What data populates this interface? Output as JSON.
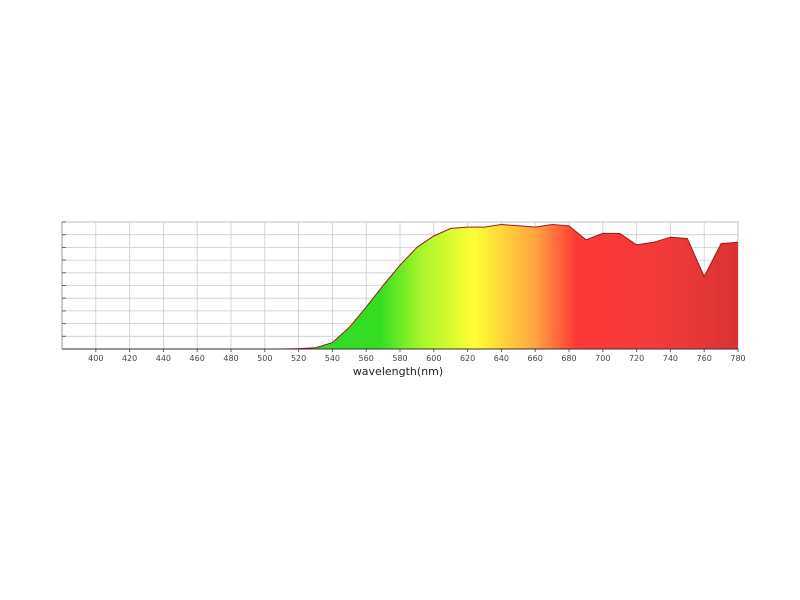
{
  "chart_data": {
    "type": "area",
    "x_label": "wavelength(nm)",
    "x": [
      380,
      390,
      400,
      410,
      420,
      430,
      440,
      450,
      460,
      470,
      480,
      490,
      500,
      510,
      520,
      530,
      540,
      550,
      560,
      570,
      580,
      590,
      600,
      610,
      620,
      630,
      640,
      650,
      660,
      670,
      680,
      690,
      700,
      710,
      720,
      730,
      740,
      750,
      760,
      770,
      780
    ],
    "values": [
      0,
      0,
      0,
      0,
      0,
      0,
      0,
      0,
      0,
      0,
      0,
      0,
      0,
      0,
      0.003,
      0.01,
      0.05,
      0.17,
      0.33,
      0.5,
      0.66,
      0.8,
      0.89,
      0.95,
      0.96,
      0.96,
      0.98,
      0.97,
      0.96,
      0.98,
      0.97,
      0.86,
      0.91,
      0.91,
      0.82,
      0.84,
      0.88,
      0.87,
      0.57,
      0.83,
      0.84
    ],
    "xlim": [
      380,
      780
    ],
    "xticks": [
      400,
      420,
      440,
      460,
      480,
      500,
      520,
      540,
      560,
      580,
      600,
      620,
      640,
      660,
      680,
      700,
      720,
      740,
      760,
      780
    ],
    "ylim": [
      0,
      1
    ],
    "yticks": [
      0,
      0.1,
      0.2,
      0.3,
      0.4,
      0.5,
      0.6,
      0.7,
      0.8,
      0.9,
      1
    ],
    "grid": true,
    "line_color": "#9a1a1a"
  }
}
